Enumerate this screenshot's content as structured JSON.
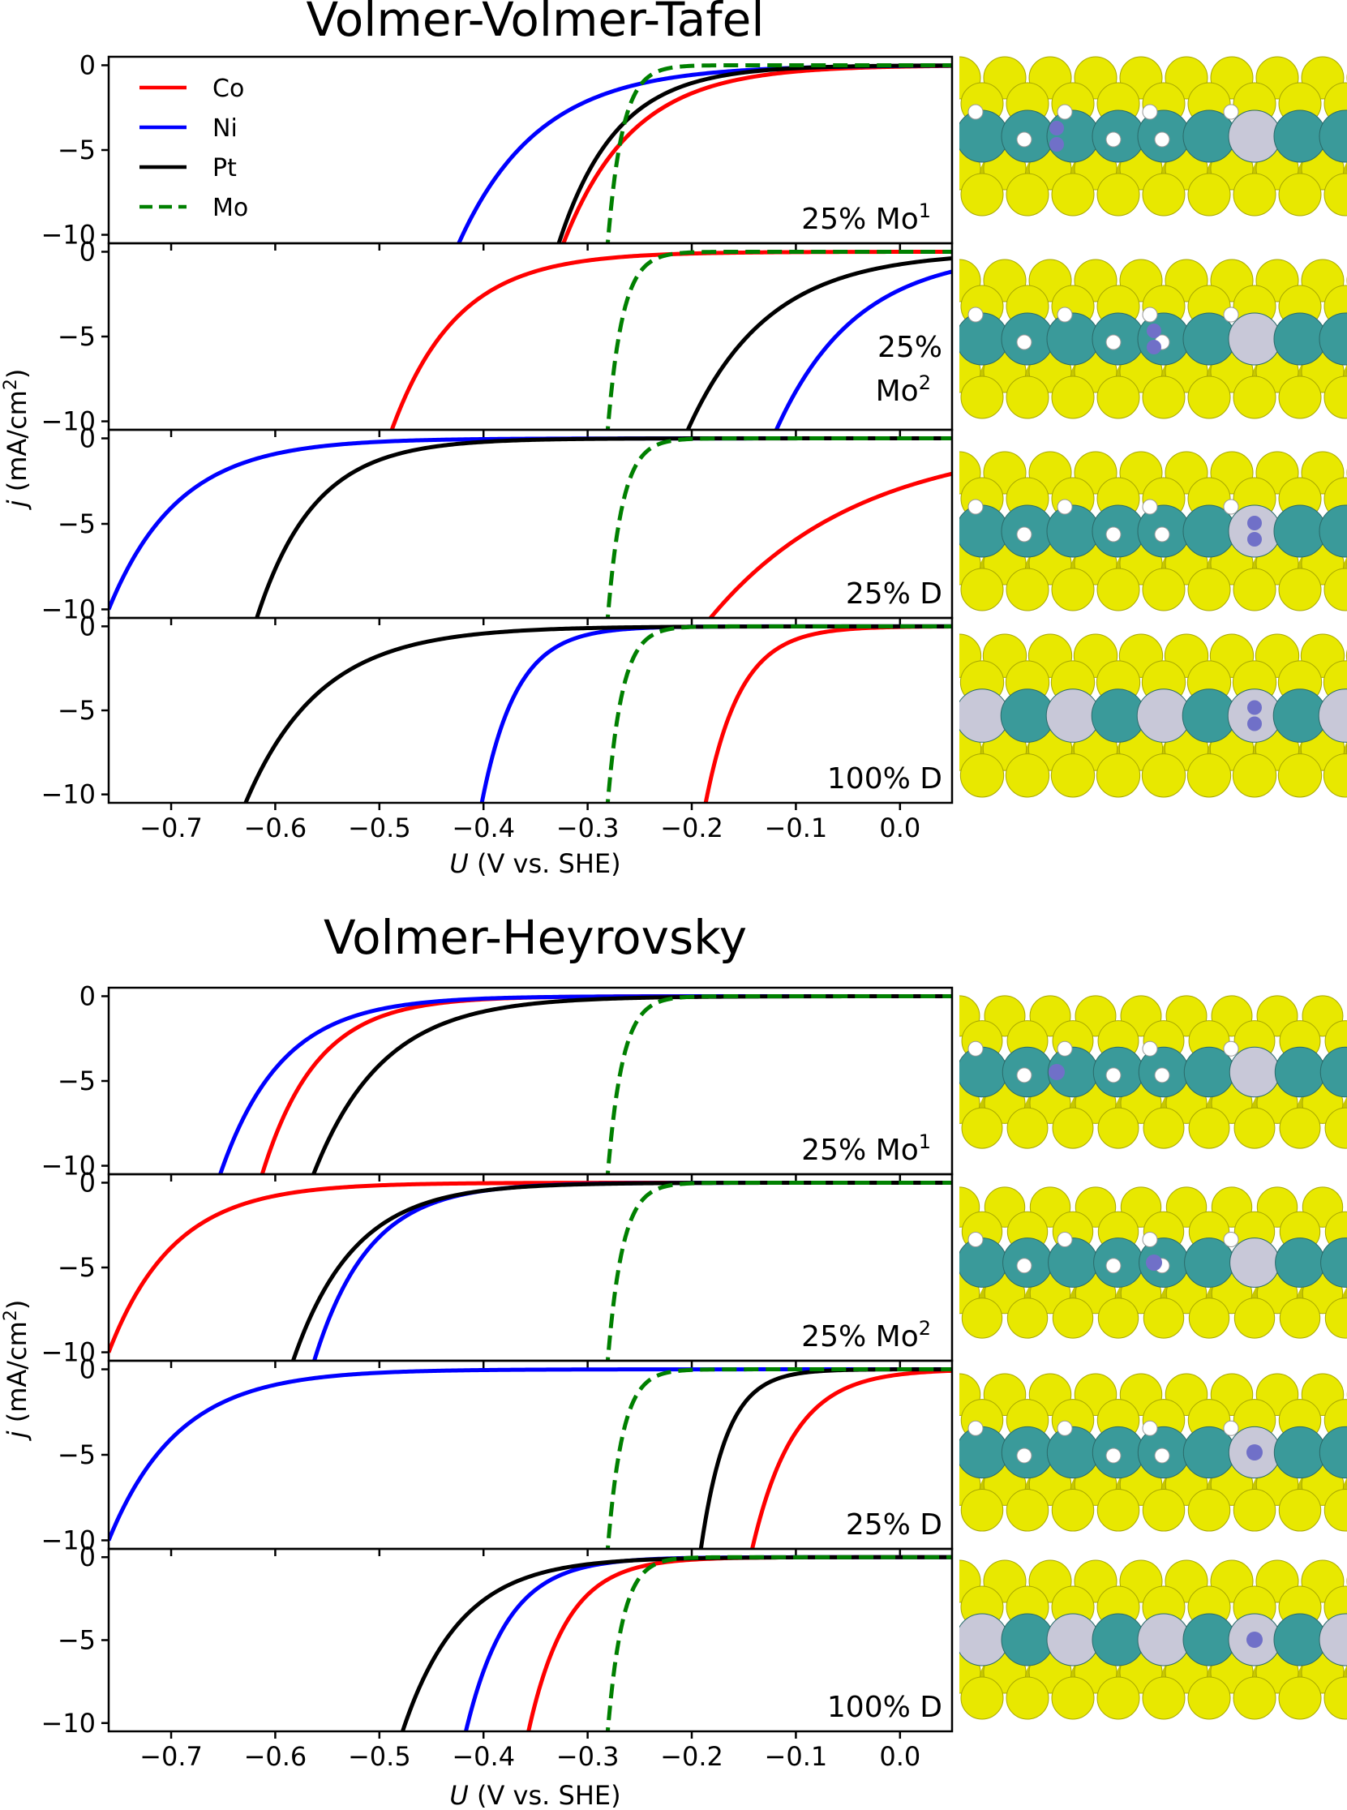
{
  "figure": {
    "sections": [
      {
        "title": "Volmer-Volmer-Tafel",
        "ylabel_italic": "j",
        "ylabel_rest": " (mA/cm",
        "ylabel_sup": "2",
        "ylabel_close": ")",
        "xlabel_italic": "U",
        "xlabel_rest": " (V vs. SHE)"
      },
      {
        "title": "Volmer-Heyrovsky",
        "ylabel_italic": "j",
        "ylabel_rest": " (mA/cm",
        "ylabel_sup": "2",
        "ylabel_close": ")",
        "xlabel_italic": "U",
        "xlabel_rest": " (V vs. SHE)"
      }
    ],
    "legend": [
      {
        "name": "Co",
        "color": "#ff0000",
        "dash": false
      },
      {
        "name": "Ni",
        "color": "#0000ff",
        "dash": false
      },
      {
        "name": "Pt",
        "color": "#000000",
        "dash": false
      },
      {
        "name": "Mo",
        "color": "#008000",
        "dash": true
      }
    ],
    "colors": {
      "Co": "#ff0000",
      "Ni": "#0000ff",
      "Pt": "#000000",
      "Mo": "#008000",
      "sulfur": "#e8e800",
      "metal": "#3a9a9a",
      "dopant": "#c8c8d8",
      "hydrogen": "#ffffff",
      "nitrogen": "#7070c8"
    }
  },
  "chart_data": [
    {
      "type": "line",
      "section": 0,
      "annotation_main": "25% Mo",
      "annotation_sup": "1",
      "xlim": [
        -0.76,
        0.05
      ],
      "ylim": [
        -10.5,
        0.5
      ],
      "xticks": [
        -0.7,
        -0.6,
        -0.5,
        -0.4,
        -0.3,
        -0.2,
        -0.1,
        0.0
      ],
      "xtick_labels": [
        "−0.7",
        "−0.6",
        "−0.5",
        "−0.4",
        "−0.3",
        "−0.2",
        "−0.1",
        "0.0"
      ],
      "yticks": [
        0,
        -5,
        -10
      ],
      "ytick_labels": [
        "0",
        "−5",
        "−10"
      ],
      "series": [
        {
          "name": "Co",
          "onset": -0.32,
          "k": 15
        },
        {
          "name": "Ni",
          "onset": -0.42,
          "k": 13
        },
        {
          "name": "Pt",
          "onset": -0.325,
          "k": 18
        },
        {
          "name": "Mo",
          "onset": -0.28,
          "k": 70
        }
      ]
    },
    {
      "type": "line",
      "section": 0,
      "annotation_main": "25%",
      "annotation_line2": "Mo",
      "annotation_sup": "2",
      "xlim": [
        -0.76,
        0.05
      ],
      "ylim": [
        -10.5,
        0.5
      ],
      "xticks": [
        -0.7,
        -0.6,
        -0.5,
        -0.4,
        -0.3,
        -0.2,
        -0.1,
        0.0
      ],
      "xtick_labels": [
        "−0.7",
        "−0.6",
        "−0.5",
        "−0.4",
        "−0.3",
        "−0.2",
        "−0.1",
        "0.0"
      ],
      "yticks": [
        0,
        -5,
        -10
      ],
      "ytick_labels": [
        "0",
        "−5",
        "−10"
      ],
      "series": [
        {
          "name": "Co",
          "onset": -0.485,
          "k": 16
        },
        {
          "name": "Ni",
          "onset": -0.115,
          "k": 13
        },
        {
          "name": "Pt",
          "onset": -0.2,
          "k": 13
        },
        {
          "name": "Mo",
          "onset": -0.28,
          "k": 70
        }
      ]
    },
    {
      "type": "line",
      "section": 0,
      "annotation_main": "25% D",
      "xlim": [
        -0.76,
        0.05
      ],
      "ylim": [
        -10.5,
        0.5
      ],
      "xticks": [
        -0.7,
        -0.6,
        -0.5,
        -0.4,
        -0.3,
        -0.2,
        -0.1,
        0.0
      ],
      "xtick_labels": [
        "−0.7",
        "−0.6",
        "−0.5",
        "−0.4",
        "−0.3",
        "−0.2",
        "−0.1",
        "0.0"
      ],
      "yticks": [
        0,
        -5,
        -10
      ],
      "ytick_labels": [
        "0",
        "−5",
        "−10"
      ],
      "series": [
        {
          "name": "Co",
          "onset": -0.175,
          "k": 7
        },
        {
          "name": "Ni",
          "onset": -0.76,
          "k": 15
        },
        {
          "name": "Pt",
          "onset": -0.615,
          "k": 18
        },
        {
          "name": "Mo",
          "onset": -0.28,
          "k": 70
        }
      ]
    },
    {
      "type": "line",
      "section": 0,
      "annotation_main": "100% D",
      "xlim": [
        -0.76,
        0.05
      ],
      "ylim": [
        -10.5,
        0.5
      ],
      "xticks": [
        -0.7,
        -0.6,
        -0.5,
        -0.4,
        -0.3,
        -0.2,
        -0.1,
        0.0
      ],
      "xtick_labels": [
        "−0.7",
        "−0.6",
        "−0.5",
        "−0.4",
        "−0.3",
        "−0.2",
        "−0.1",
        "0.0"
      ],
      "yticks": [
        0,
        -5,
        -10
      ],
      "ytick_labels": [
        "0",
        "−5",
        "−10"
      ],
      "series": [
        {
          "name": "Co",
          "onset": -0.185,
          "k": 30
        },
        {
          "name": "Ni",
          "onset": -0.4,
          "k": 30
        },
        {
          "name": "Pt",
          "onset": -0.625,
          "k": 14
        },
        {
          "name": "Mo",
          "onset": -0.28,
          "k": 70
        }
      ]
    },
    {
      "type": "line",
      "section": 1,
      "annotation_main": "25% Mo",
      "annotation_sup": "1",
      "xlim": [
        -0.76,
        0.05
      ],
      "ylim": [
        -10.5,
        0.5
      ],
      "xticks": [
        -0.7,
        -0.6,
        -0.5,
        -0.4,
        -0.3,
        -0.2,
        -0.1,
        0.0
      ],
      "xtick_labels": [
        "−0.7",
        "−0.6",
        "−0.5",
        "−0.4",
        "−0.3",
        "−0.2",
        "−0.1",
        "0.0"
      ],
      "yticks": [
        0,
        -5,
        -10
      ],
      "ytick_labels": [
        "0",
        "−5",
        "−10"
      ],
      "series": [
        {
          "name": "Co",
          "onset": -0.61,
          "k": 19
        },
        {
          "name": "Ni",
          "onset": -0.65,
          "k": 17
        },
        {
          "name": "Pt",
          "onset": -0.56,
          "k": 15
        },
        {
          "name": "Mo",
          "onset": -0.28,
          "k": 70
        }
      ]
    },
    {
      "type": "line",
      "section": 1,
      "annotation_main": "25% Mo",
      "annotation_sup": "2",
      "xlim": [
        -0.76,
        0.05
      ],
      "ylim": [
        -10.5,
        0.5
      ],
      "xticks": [
        -0.7,
        -0.6,
        -0.5,
        -0.4,
        -0.3,
        -0.2,
        -0.1,
        0.0
      ],
      "xtick_labels": [
        "−0.7",
        "−0.6",
        "−0.5",
        "−0.4",
        "−0.3",
        "−0.2",
        "−0.1",
        "0.0"
      ],
      "yticks": [
        0,
        -5,
        -10
      ],
      "ytick_labels": [
        "0",
        "−5",
        "−10"
      ],
      "series": [
        {
          "name": "Co",
          "onset": -0.76,
          "k": 16
        },
        {
          "name": "Ni",
          "onset": -0.56,
          "k": 19
        },
        {
          "name": "Pt",
          "onset": -0.58,
          "k": 17
        },
        {
          "name": "Mo",
          "onset": -0.28,
          "k": 70
        }
      ]
    },
    {
      "type": "line",
      "section": 1,
      "annotation_main": "25% D",
      "xlim": [
        -0.76,
        0.05
      ],
      "ylim": [
        -10.5,
        0.5
      ],
      "xticks": [
        -0.7,
        -0.6,
        -0.5,
        -0.4,
        -0.3,
        -0.2,
        -0.1,
        0.0
      ],
      "xtick_labels": [
        "−0.7",
        "−0.6",
        "−0.5",
        "−0.4",
        "−0.3",
        "−0.2",
        "−0.1",
        "0.0"
      ],
      "yticks": [
        0,
        -5,
        -10
      ],
      "ytick_labels": [
        "0",
        "−5",
        "−10"
      ],
      "series": [
        {
          "name": "Co",
          "onset": -0.14,
          "k": 25
        },
        {
          "name": "Ni",
          "onset": -0.76,
          "k": 15
        },
        {
          "name": "Pt",
          "onset": -0.19,
          "k": 40
        },
        {
          "name": "Mo",
          "onset": -0.28,
          "k": 70
        }
      ]
    },
    {
      "type": "line",
      "section": 1,
      "annotation_main": "100% D",
      "xlim": [
        -0.76,
        0.05
      ],
      "ylim": [
        -10.5,
        0.5
      ],
      "xticks": [
        -0.7,
        -0.6,
        -0.5,
        -0.4,
        -0.3,
        -0.2,
        -0.1,
        0.0
      ],
      "xtick_labels": [
        "−0.7",
        "−0.6",
        "−0.5",
        "−0.4",
        "−0.3",
        "−0.2",
        "−0.1",
        "0.0"
      ],
      "yticks": [
        0,
        -5,
        -10
      ],
      "ytick_labels": [
        "0",
        "−5",
        "−10"
      ],
      "series": [
        {
          "name": "Co",
          "onset": -0.355,
          "k": 27
        },
        {
          "name": "Ni",
          "onset": -0.415,
          "k": 25
        },
        {
          "name": "Pt",
          "onset": -0.475,
          "k": 18
        },
        {
          "name": "Mo",
          "onset": -0.28,
          "k": 70
        }
      ]
    }
  ],
  "structures": [
    {
      "kind": "doped",
      "adsorbate": "N2-vertical"
    },
    {
      "kind": "doped",
      "adsorbate": "N2-tilted"
    },
    {
      "kind": "doped",
      "adsorbate": "N2-on-dopant"
    },
    {
      "kind": "full",
      "adsorbate": "N2-on-dopant"
    },
    {
      "kind": "doped",
      "adsorbate": "N-top"
    },
    {
      "kind": "doped",
      "adsorbate": "N-bridge"
    },
    {
      "kind": "doped",
      "adsorbate": "N-on-dopant"
    },
    {
      "kind": "full",
      "adsorbate": "N-on-dopant"
    }
  ]
}
